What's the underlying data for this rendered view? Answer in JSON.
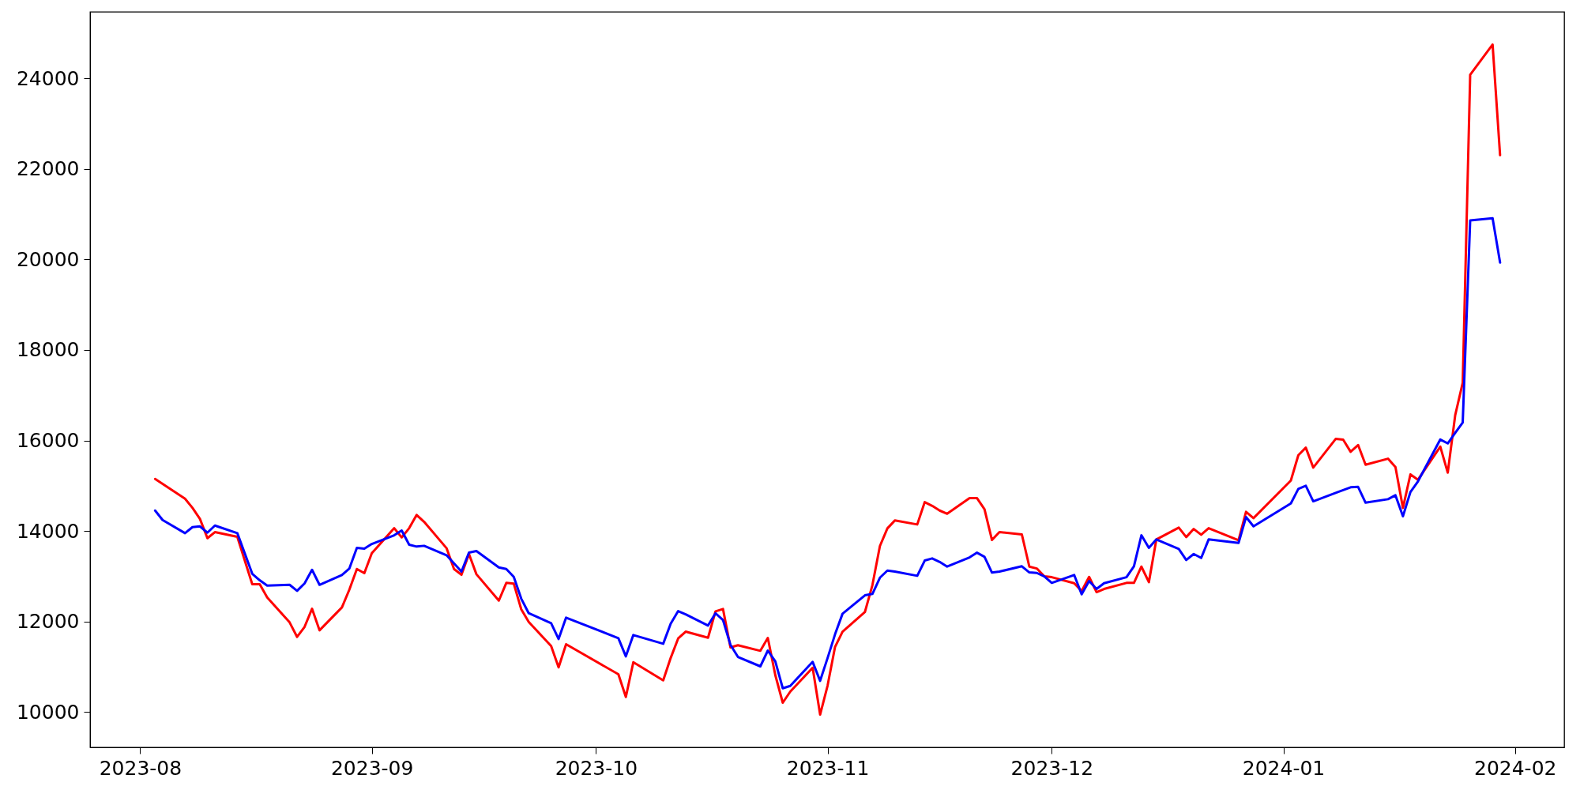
{
  "chart_data": {
    "type": "line",
    "xlim": [
      "2023-07-25T07:00",
      "2024-02-07T14:00"
    ],
    "ylim": [
      9220,
      25470
    ],
    "xticks": [
      {
        "value": "2023-08-01",
        "label": "2023-08"
      },
      {
        "value": "2023-09-01",
        "label": "2023-09"
      },
      {
        "value": "2023-10-01",
        "label": "2023-10"
      },
      {
        "value": "2023-11-01",
        "label": "2023-11"
      },
      {
        "value": "2023-12-01",
        "label": "2023-12"
      },
      {
        "value": "2024-01-01",
        "label": "2024-01"
      },
      {
        "value": "2024-02-01",
        "label": "2024-02"
      }
    ],
    "yticks": [
      10000,
      12000,
      14000,
      16000,
      18000,
      20000,
      22000,
      24000
    ],
    "line_style": "solid",
    "series": [
      {
        "color": "#ff0000",
        "x": [
          "2023-08-03",
          "2023-08-07",
          "2023-08-08",
          "2023-08-09",
          "2023-08-10",
          "2023-08-11",
          "2023-08-14",
          "2023-08-16",
          "2023-08-17",
          "2023-08-18",
          "2023-08-21",
          "2023-08-22",
          "2023-08-23",
          "2023-08-24",
          "2023-08-25",
          "2023-08-28",
          "2023-08-29",
          "2023-08-30",
          "2023-08-31",
          "2023-09-01",
          "2023-09-04",
          "2023-09-05",
          "2023-09-06",
          "2023-09-07",
          "2023-09-08",
          "2023-09-11",
          "2023-09-12",
          "2023-09-13",
          "2023-09-14",
          "2023-09-15",
          "2023-09-18",
          "2023-09-19",
          "2023-09-20",
          "2023-09-21",
          "2023-09-22",
          "2023-09-25",
          "2023-09-26",
          "2023-09-27",
          "2023-10-04",
          "2023-10-05",
          "2023-10-06",
          "2023-10-10",
          "2023-10-11",
          "2023-10-12",
          "2023-10-13",
          "2023-10-16",
          "2023-10-17",
          "2023-10-18",
          "2023-10-19",
          "2023-10-20",
          "2023-10-23",
          "2023-10-24",
          "2023-10-25",
          "2023-10-26",
          "2023-10-27",
          "2023-10-30",
          "2023-10-31",
          "2023-11-01",
          "2023-11-02",
          "2023-11-03",
          "2023-11-06",
          "2023-11-07",
          "2023-11-08",
          "2023-11-09",
          "2023-11-10",
          "2023-11-13",
          "2023-11-14",
          "2023-11-15",
          "2023-11-16",
          "2023-11-17",
          "2023-11-20",
          "2023-11-21",
          "2023-11-22",
          "2023-11-23",
          "2023-11-24",
          "2023-11-27",
          "2023-11-28",
          "2023-11-29",
          "2023-11-30",
          "2023-12-01",
          "2023-12-04",
          "2023-12-05",
          "2023-12-06",
          "2023-12-07",
          "2023-12-08",
          "2023-12-11",
          "2023-12-12",
          "2023-12-13",
          "2023-12-14",
          "2023-12-15",
          "2023-12-18",
          "2023-12-19",
          "2023-12-20",
          "2023-12-21",
          "2023-12-22",
          "2023-12-26",
          "2023-12-27",
          "2023-12-28",
          "2024-01-02",
          "2024-01-03",
          "2024-01-04",
          "2024-01-05",
          "2024-01-08",
          "2024-01-09",
          "2024-01-10",
          "2024-01-11",
          "2024-01-12",
          "2024-01-15",
          "2024-01-16",
          "2024-01-17",
          "2024-01-18",
          "2024-01-19",
          "2024-01-22",
          "2024-01-23",
          "2024-01-24",
          "2024-01-25",
          "2024-01-26",
          "2024-01-29",
          "2024-01-30"
        ],
        "values": [
          15150,
          14713,
          14511,
          14266,
          13841,
          13975,
          13870,
          12823,
          12823,
          12532,
          11980,
          11660,
          11881,
          12282,
          11806,
          12312,
          12707,
          13160,
          13068,
          13509,
          14062,
          13858,
          14062,
          14354,
          14202,
          13621,
          13160,
          13033,
          13492,
          13045,
          12462,
          12853,
          12836,
          12270,
          11991,
          11457,
          10986,
          11497,
          10834,
          10333,
          11101,
          10700,
          11195,
          11625,
          11776,
          11642,
          12225,
          12277,
          11427,
          11475,
          11352,
          11637,
          10817,
          10206,
          10450,
          10979,
          9944,
          10585,
          11440,
          11776,
          12213,
          12806,
          13666,
          14057,
          14232,
          14144,
          14638,
          14556,
          14452,
          14382,
          14725,
          14725,
          14481,
          13801,
          13975,
          13923,
          13213,
          13172,
          12998,
          12980,
          12846,
          12672,
          12986,
          12649,
          12719,
          12853,
          12853,
          13213,
          12870,
          13813,
          14075,
          13865,
          14045,
          13918,
          14062,
          13795,
          14424,
          14284,
          15115,
          15673,
          15842,
          15401,
          16034,
          16017,
          15750,
          15900,
          15464,
          15598,
          15411,
          14511,
          15249,
          15132,
          15865,
          15289,
          16563,
          17273,
          24079,
          24747,
          22304
        ]
      },
      {
        "color": "#0000ff",
        "x": [
          "2023-08-03",
          "2023-08-04",
          "2023-08-07",
          "2023-08-08",
          "2023-08-09",
          "2023-08-10",
          "2023-08-11",
          "2023-08-14",
          "2023-08-16",
          "2023-08-17",
          "2023-08-18",
          "2023-08-21",
          "2023-08-22",
          "2023-08-23",
          "2023-08-24",
          "2023-08-25",
          "2023-08-28",
          "2023-08-29",
          "2023-08-30",
          "2023-08-31",
          "2023-09-01",
          "2023-09-04",
          "2023-09-05",
          "2023-09-06",
          "2023-09-07",
          "2023-09-08",
          "2023-09-11",
          "2023-09-13",
          "2023-09-14",
          "2023-09-15",
          "2023-09-18",
          "2023-09-19",
          "2023-09-20",
          "2023-09-21",
          "2023-09-22",
          "2023-09-25",
          "2023-09-26",
          "2023-09-27",
          "2023-10-04",
          "2023-10-05",
          "2023-10-06",
          "2023-10-10",
          "2023-10-11",
          "2023-10-12",
          "2023-10-13",
          "2023-10-16",
          "2023-10-17",
          "2023-10-18",
          "2023-10-19",
          "2023-10-20",
          "2023-10-23",
          "2023-10-24",
          "2023-10-25",
          "2023-10-26",
          "2023-10-27",
          "2023-10-30",
          "2023-10-31",
          "2023-11-01",
          "2023-11-02",
          "2023-11-03",
          "2023-11-06",
          "2023-11-07",
          "2023-11-08",
          "2023-11-09",
          "2023-11-10",
          "2023-11-13",
          "2023-11-14",
          "2023-11-15",
          "2023-11-16",
          "2023-11-17",
          "2023-11-20",
          "2023-11-21",
          "2023-11-22",
          "2023-11-23",
          "2023-11-24",
          "2023-11-27",
          "2023-11-28",
          "2023-11-29",
          "2023-11-30",
          "2023-12-01",
          "2023-12-04",
          "2023-12-05",
          "2023-12-06",
          "2023-12-07",
          "2023-12-08",
          "2023-12-11",
          "2023-12-12",
          "2023-12-13",
          "2023-12-14",
          "2023-12-15",
          "2023-12-18",
          "2023-12-19",
          "2023-12-20",
          "2023-12-21",
          "2023-12-22",
          "2023-12-26",
          "2023-12-27",
          "2023-12-28",
          "2024-01-02",
          "2024-01-03",
          "2024-01-04",
          "2024-01-05",
          "2024-01-08",
          "2024-01-09",
          "2024-01-10",
          "2024-01-11",
          "2024-01-12",
          "2024-01-15",
          "2024-01-16",
          "2024-01-17",
          "2024-01-18",
          "2024-01-19",
          "2024-01-22",
          "2024-01-23",
          "2024-01-24",
          "2024-01-25",
          "2024-01-26",
          "2024-01-29",
          "2024-01-30"
        ],
        "values": [
          14452,
          14242,
          13952,
          14085,
          14102,
          13963,
          14120,
          13952,
          13055,
          12911,
          12794,
          12811,
          12679,
          12841,
          13143,
          12811,
          13028,
          13172,
          13626,
          13609,
          13713,
          13905,
          14010,
          13696,
          13656,
          13673,
          13464,
          13103,
          13521,
          13556,
          13195,
          13160,
          12986,
          12504,
          12183,
          11963,
          11614,
          12085,
          11632,
          11230,
          11701,
          11509,
          11951,
          12230,
          12160,
          11911,
          12183,
          12033,
          11485,
          11218,
          11009,
          11358,
          11119,
          10525,
          10578,
          11108,
          10689,
          11195,
          11719,
          12172,
          12579,
          12609,
          12968,
          13125,
          13103,
          13010,
          13347,
          13394,
          13317,
          13213,
          13417,
          13521,
          13429,
          13080,
          13103,
          13220,
          13085,
          13073,
          12998,
          12853,
          13028,
          12602,
          12893,
          12719,
          12846,
          12980,
          13220,
          13905,
          13626,
          13813,
          13603,
          13359,
          13492,
          13404,
          13813,
          13736,
          14307,
          14102,
          14609,
          14930,
          14999,
          14656,
          14842,
          14905,
          14965,
          14975,
          14626,
          14703,
          14790,
          14324,
          14860,
          15092,
          16022,
          15935,
          16169,
          16395,
          20863,
          20908,
          19931
        ]
      }
    ]
  }
}
